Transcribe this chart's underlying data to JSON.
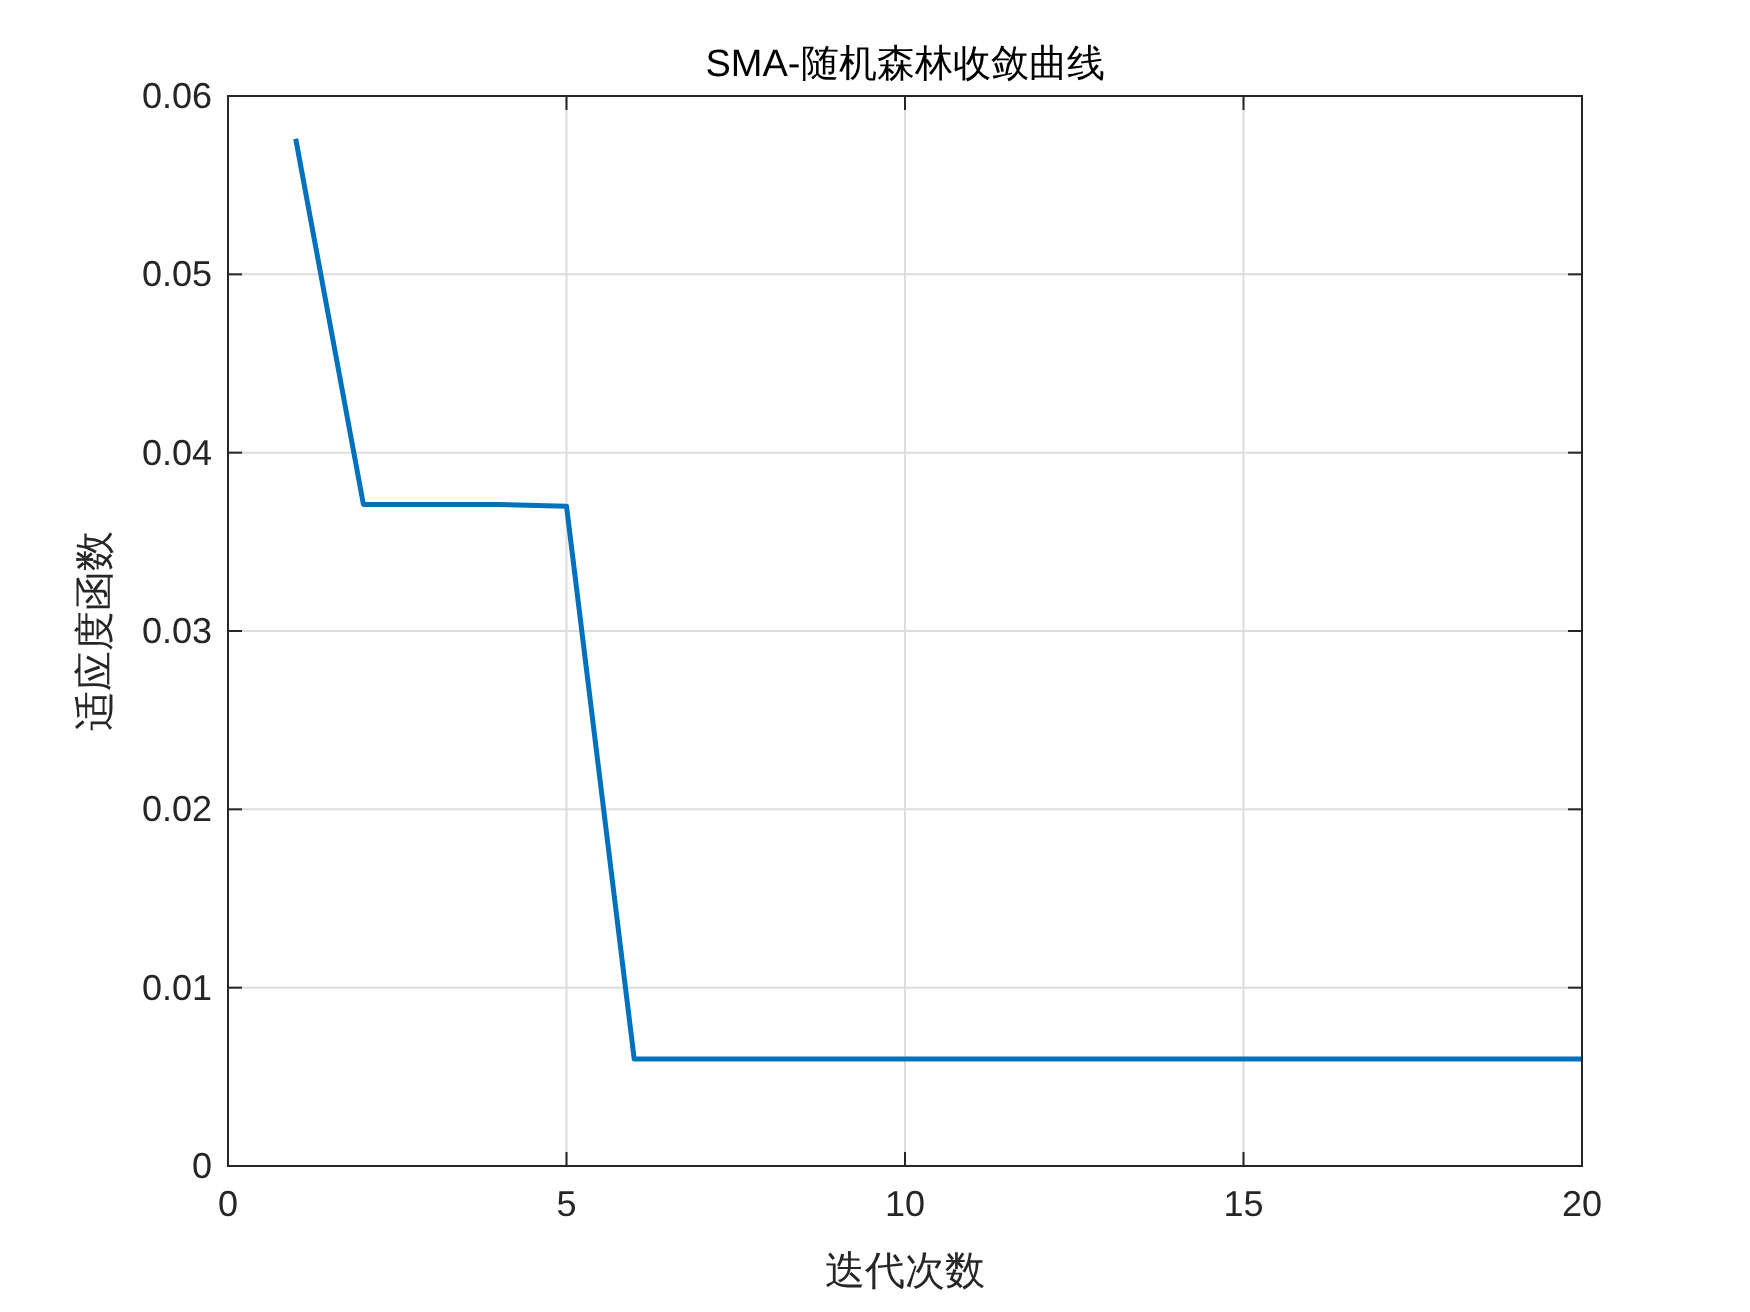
{
  "chart_data": {
    "type": "line",
    "title": "SMA-随机森林收敛曲线",
    "xlabel": "迭代次数",
    "ylabel": "适应度函数",
    "x": [
      1,
      2,
      3,
      4,
      5,
      6,
      7,
      8,
      9,
      10,
      11,
      12,
      13,
      14,
      15,
      16,
      17,
      18,
      19,
      20
    ],
    "series": [
      {
        "color": "#0072bd",
        "values": [
          0.0576,
          0.0371,
          0.0371,
          0.0371,
          0.037,
          0.006,
          0.006,
          0.006,
          0.006,
          0.006,
          0.006,
          0.006,
          0.006,
          0.006,
          0.006,
          0.006,
          0.006,
          0.006,
          0.006,
          0.006
        ]
      }
    ],
    "xlim": [
      0,
      20
    ],
    "xticks": [
      0,
      5,
      10,
      15,
      20
    ],
    "ylim": [
      0,
      0.06
    ],
    "yticks": [
      0,
      0.01,
      0.02,
      0.03,
      0.04,
      0.05,
      0.06
    ],
    "grid": true,
    "line_style": "solid",
    "marker": "none"
  }
}
